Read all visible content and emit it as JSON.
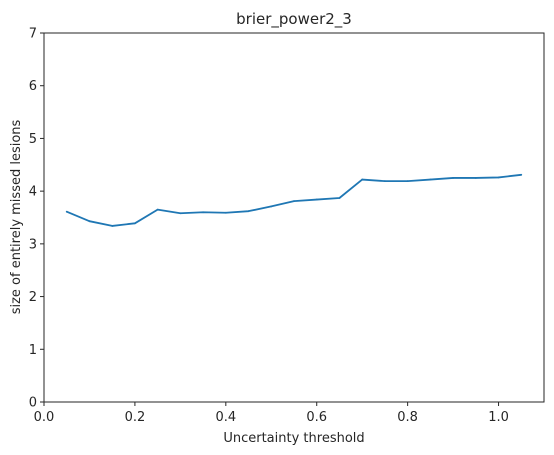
{
  "chart_data": {
    "type": "line",
    "title": "brier_power2_3",
    "xlabel": "Uncertainty threshold",
    "ylabel": "size of entirely missed lesions",
    "xlim": [
      0.0,
      1.1
    ],
    "ylim": [
      0,
      7
    ],
    "xticks": [
      0.0,
      0.2,
      0.4,
      0.6,
      0.8,
      1.0
    ],
    "xtick_labels": [
      "0.0",
      "0.2",
      "0.4",
      "0.6",
      "0.8",
      "1.0"
    ],
    "yticks": [
      0,
      1,
      2,
      3,
      4,
      5,
      6,
      7
    ],
    "ytick_labels": [
      "0",
      "1",
      "2",
      "3",
      "4",
      "5",
      "6",
      "7"
    ],
    "grid": false,
    "series": [
      {
        "color": "#1f77b4",
        "x": [
          0.05,
          0.1,
          0.15,
          0.2,
          0.25,
          0.3,
          0.35,
          0.4,
          0.45,
          0.5,
          0.55,
          0.6,
          0.65,
          0.7,
          0.75,
          0.8,
          0.85,
          0.9,
          0.95,
          1.0,
          1.05
        ],
        "y": [
          3.61,
          3.43,
          3.34,
          3.39,
          3.65,
          3.58,
          3.6,
          3.59,
          3.62,
          3.71,
          3.81,
          3.84,
          3.87,
          4.22,
          4.19,
          4.19,
          4.22,
          4.25,
          4.25,
          4.26,
          4.31
        ]
      }
    ]
  }
}
